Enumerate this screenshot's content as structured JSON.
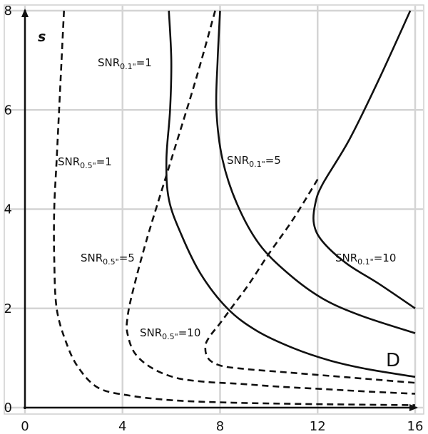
{
  "chart_data": {
    "type": "line",
    "title": "",
    "xlabel": "",
    "ylabel": "s",
    "xlim": [
      0,
      16
    ],
    "ylim": [
      0,
      8
    ],
    "grid": true,
    "x_ticks": [
      "0",
      "4",
      "8",
      "12",
      "16"
    ],
    "y_ticks": [
      "0",
      "2",
      "4",
      "6",
      "8"
    ],
    "region_label": "D",
    "series": [
      {
        "name": "SNR0.5\"=1",
        "label": {
          "base": "SNR",
          "sub": "0.5\"",
          "rest": "=1"
        },
        "style": "dashed",
        "points": [
          [
            1.6,
            8.0
          ],
          [
            1.5,
            7.0
          ],
          [
            1.4,
            6.0
          ],
          [
            1.3,
            5.0
          ],
          [
            1.2,
            4.0
          ],
          [
            1.2,
            3.0
          ],
          [
            1.3,
            2.0
          ],
          [
            1.7,
            1.3
          ],
          [
            2.2,
            0.8
          ],
          [
            3.0,
            0.4
          ],
          [
            4.2,
            0.25
          ],
          [
            6.0,
            0.15
          ],
          [
            8.5,
            0.1
          ],
          [
            12.0,
            0.07
          ],
          [
            16.0,
            0.05
          ]
        ]
      },
      {
        "name": "SNR0.5\"=5",
        "label": {
          "base": "SNR",
          "sub": "0.5\"",
          "rest": "=5"
        },
        "style": "dashed",
        "points": [
          [
            7.8,
            8.0
          ],
          [
            7.0,
            6.6
          ],
          [
            6.0,
            5.0
          ],
          [
            5.0,
            3.4
          ],
          [
            4.4,
            2.3
          ],
          [
            4.2,
            1.8
          ],
          [
            4.2,
            1.5
          ],
          [
            4.5,
            1.1
          ],
          [
            5.2,
            0.8
          ],
          [
            6.2,
            0.6
          ],
          [
            7.4,
            0.52
          ],
          [
            8.8,
            0.48
          ],
          [
            10.5,
            0.42
          ],
          [
            12.4,
            0.37
          ],
          [
            14.2,
            0.32
          ],
          [
            16.0,
            0.28
          ]
        ]
      },
      {
        "name": "SNR0.5\"=10",
        "label": {
          "base": "SNR",
          "sub": "0.5\"",
          "rest": "=10"
        },
        "style": "dashed",
        "points": [
          [
            12.0,
            4.6
          ],
          [
            11.0,
            3.8
          ],
          [
            10.0,
            3.1
          ],
          [
            9.2,
            2.5
          ],
          [
            8.6,
            2.1
          ],
          [
            8.0,
            1.7
          ],
          [
            7.6,
            1.45
          ],
          [
            7.4,
            1.25
          ],
          [
            7.5,
            1.0
          ],
          [
            8.0,
            0.85
          ],
          [
            9.0,
            0.78
          ],
          [
            10.5,
            0.72
          ],
          [
            12.0,
            0.66
          ],
          [
            14.0,
            0.58
          ],
          [
            16.0,
            0.5
          ]
        ]
      },
      {
        "name": "SNR0.1\"=1",
        "label": {
          "base": "SNR",
          "sub": "0.1\"",
          "rest": "=1"
        },
        "style": "solid",
        "points": [
          [
            5.9,
            8.0
          ],
          [
            6.0,
            7.0
          ],
          [
            5.95,
            6.0
          ],
          [
            5.8,
            5.0
          ],
          [
            5.9,
            4.2
          ],
          [
            6.4,
            3.5
          ],
          [
            7.2,
            2.7
          ],
          [
            8.3,
            2.0
          ],
          [
            9.5,
            1.55
          ],
          [
            11.0,
            1.2
          ],
          [
            12.5,
            0.95
          ],
          [
            14.0,
            0.78
          ],
          [
            16.0,
            0.62
          ]
        ]
      },
      {
        "name": "SNR0.1\"=5",
        "label": {
          "base": "SNR",
          "sub": "0.1\"",
          "rest": "=5"
        },
        "style": "solid",
        "points": [
          [
            8.0,
            8.0
          ],
          [
            7.9,
            7.0
          ],
          [
            7.85,
            6.0
          ],
          [
            8.1,
            5.0
          ],
          [
            8.7,
            4.1
          ],
          [
            9.6,
            3.3
          ],
          [
            10.8,
            2.7
          ],
          [
            12.2,
            2.2
          ],
          [
            13.8,
            1.85
          ],
          [
            16.0,
            1.5
          ]
        ]
      },
      {
        "name": "SNR0.1\"=10",
        "label": {
          "base": "SNR",
          "sub": "0.1\"",
          "rest": "=10"
        },
        "style": "solid",
        "points": [
          [
            15.8,
            8.0
          ],
          [
            14.5,
            6.6
          ],
          [
            13.3,
            5.4
          ],
          [
            12.2,
            4.5
          ],
          [
            11.9,
            4.1
          ],
          [
            11.85,
            3.7
          ],
          [
            12.2,
            3.35
          ],
          [
            13.2,
            2.9
          ],
          [
            14.5,
            2.5
          ],
          [
            16.0,
            2.0
          ]
        ]
      }
    ]
  }
}
